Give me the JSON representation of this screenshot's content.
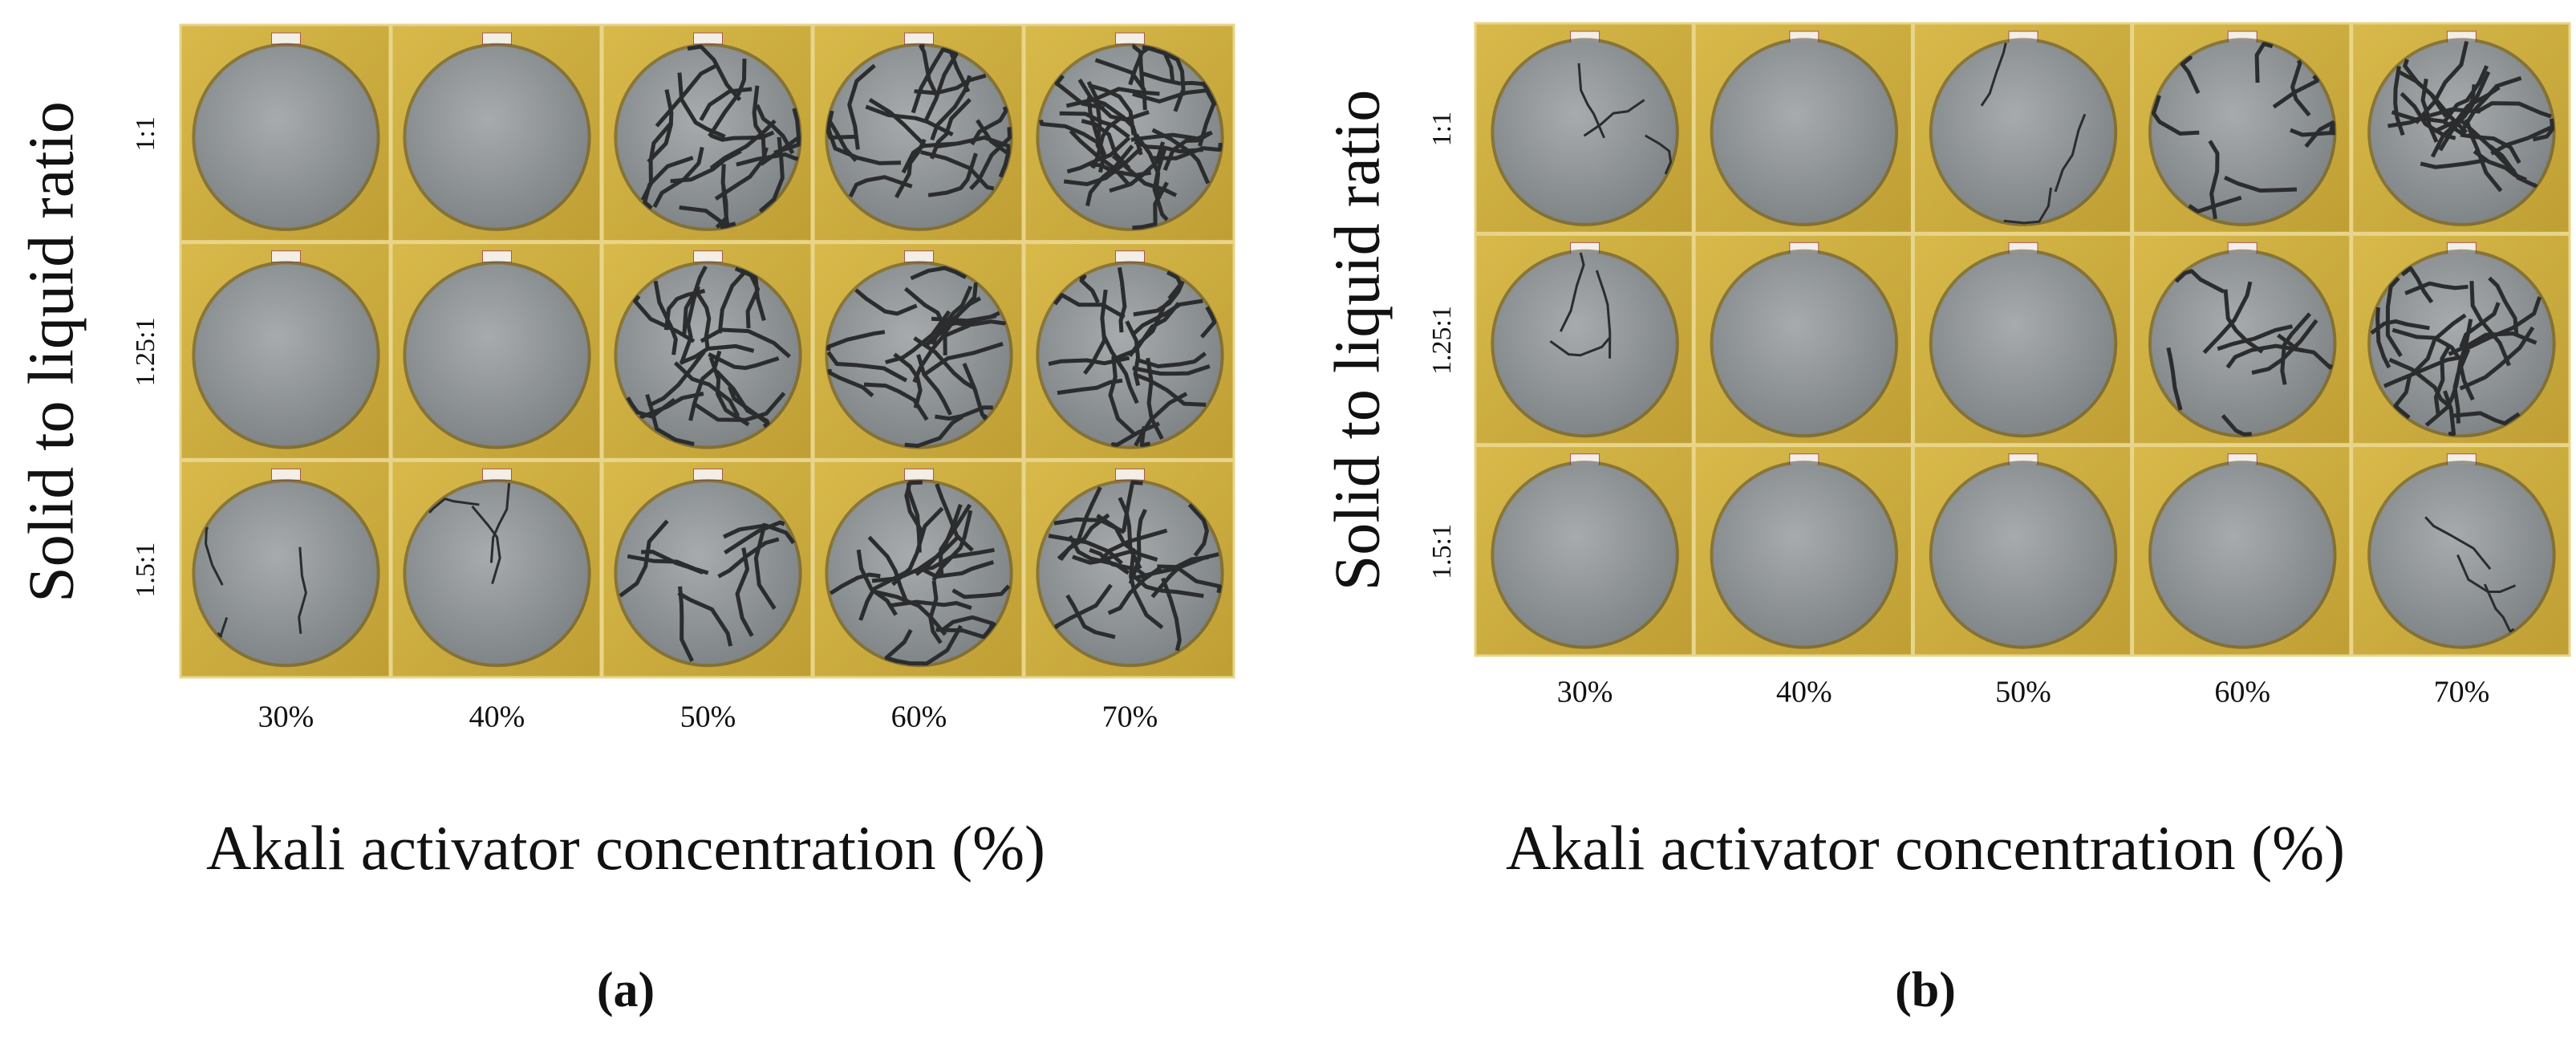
{
  "panels": [
    {
      "y_label": "Solid to liquid ratio",
      "rows": [
        "1:1",
        "1.25:1",
        "1.5:1"
      ],
      "columns": [
        "30%",
        "40%",
        "50%",
        "60%",
        "70%"
      ],
      "x_label": "Akali activator concentration (%)",
      "caption": "(a)"
    },
    {
      "y_label": "Solid to liquid ratio",
      "rows": [
        "1:1",
        "1.25:1",
        "1.5:1"
      ],
      "columns": [
        "30%",
        "40%",
        "50%",
        "60%",
        "70%"
      ],
      "x_label": "Akali activator concentration (%)",
      "caption": "(b)"
    }
  ]
}
